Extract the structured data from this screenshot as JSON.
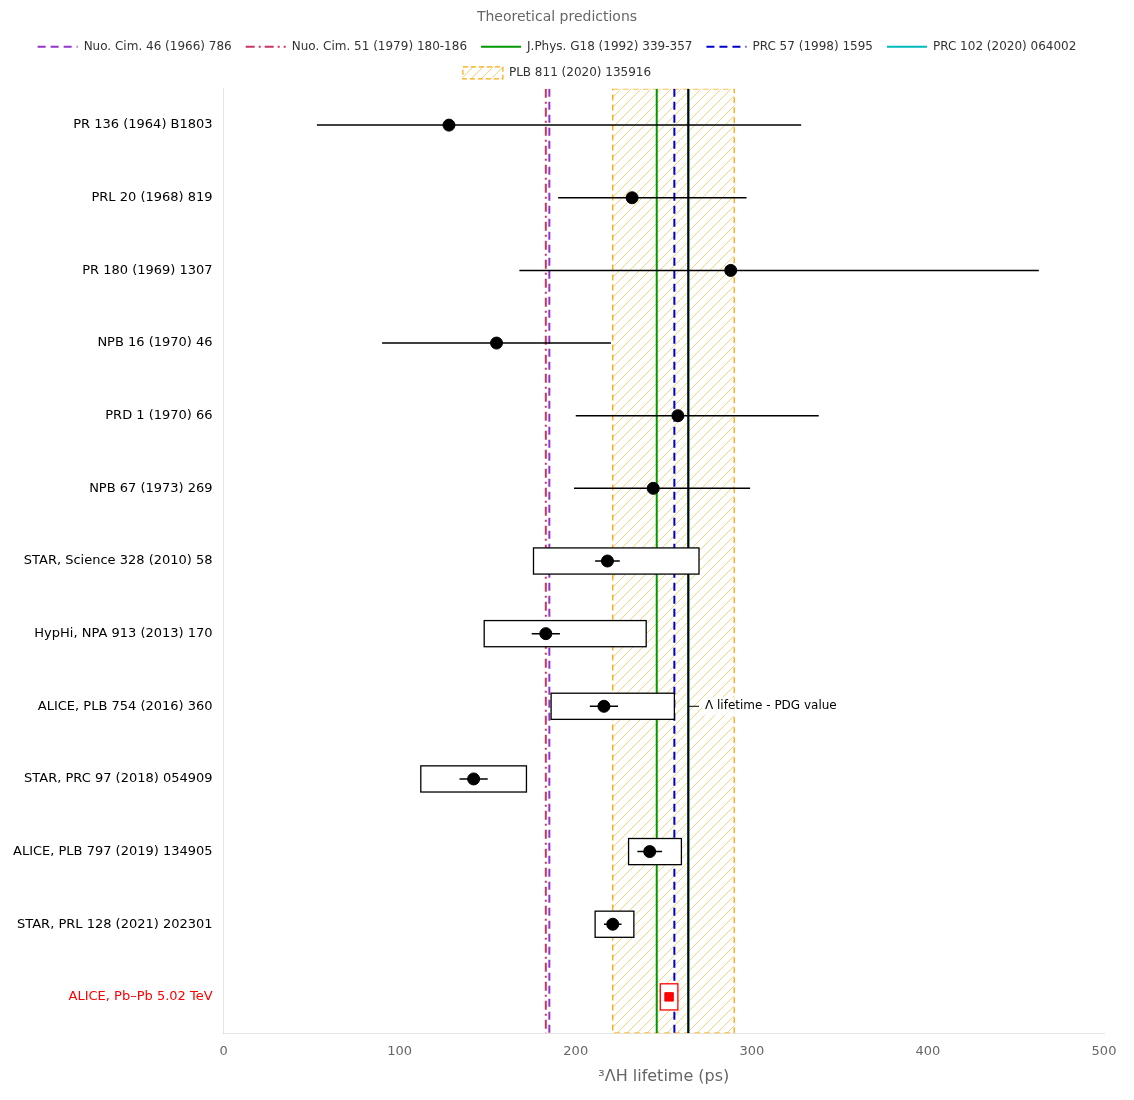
{
  "chart_data": {
    "type": "scatter",
    "orientation": "horizontal",
    "categories": [
      "PR 136 (1964) B1803",
      "PRL 20 (1968) 819",
      "PR 180 (1969) 1307",
      "NPB 16 (1970) 46",
      "PRD 1 (1970) 66",
      "NPB 67 (1973) 269",
      "STAR, Science 328 (2010) 58",
      "HypHi, NPA 913 (2013) 170",
      "ALICE, PLB 754 (2016) 360",
      "STAR, PRC 97 (2018) 054909",
      "ALICE, PLB 797 (2019) 134905",
      "STAR, PRL 128 (2021) 202301",
      "ALICE, Pb–Pb 5.02 TeV"
    ],
    "series": [
      {
        "color": "#000000",
        "marker": "circle",
        "values": [
          128,
          232,
          288,
          155,
          258,
          244,
          218,
          183,
          216,
          142,
          242,
          221,
          null
        ],
        "stat_lo": [
          75,
          42,
          120,
          65,
          58,
          45,
          7,
          8,
          8,
          8,
          7,
          5,
          null
        ],
        "stat_hi": [
          200,
          65,
          175,
          65,
          80,
          55,
          7,
          8,
          8,
          8,
          7,
          5,
          null
        ],
        "syst_lo": [
          null,
          null,
          null,
          null,
          null,
          null,
          42,
          35,
          30,
          30,
          12,
          10,
          null
        ],
        "syst_hi": [
          null,
          null,
          null,
          null,
          null,
          null,
          52,
          57,
          40,
          30,
          18,
          12,
          null
        ]
      },
      {
        "color": "red",
        "marker": "square",
        "values": [
          null,
          null,
          null,
          null,
          null,
          null,
          null,
          null,
          null,
          null,
          null,
          null,
          253
        ],
        "syst_lo": [
          null,
          null,
          null,
          null,
          null,
          null,
          null,
          null,
          null,
          null,
          null,
          null,
          5
        ],
        "syst_hi": [
          null,
          null,
          null,
          null,
          null,
          null,
          null,
          null,
          null,
          null,
          null,
          null,
          5
        ]
      }
    ],
    "reference_lines": [
      {
        "x": 185,
        "color": "#9933CC",
        "line_style": "dashed",
        "name": "Nuo. Cim. 46 (1966) 786"
      },
      {
        "x": 183,
        "color": "#CC3366",
        "line_style": "dashdot",
        "name": "Nuo. Cim. 51 (1979) 180-186"
      },
      {
        "x": 246,
        "color": "#009900",
        "line_style": "solid",
        "name": "J.Phys. G18 (1992) 339-357"
      },
      {
        "x": 256,
        "color": "#0000CC",
        "line_style": "dashed",
        "name": "PRC 57 (1998) 1595"
      },
      {
        "x": 264,
        "color": "#00BBBB",
        "line_style": "solid",
        "name": "PRC 102 (2020) 064002"
      },
      {
        "x": 263.9,
        "color": "#000000",
        "line_style": "solid"
      }
    ],
    "band": {
      "lo": 221,
      "hi": 290,
      "color": "#FFA500",
      "name": "PLB 811 (2020) 135916"
    },
    "legend_title": "Theoretical predictions",
    "legend": "top",
    "annotation": {
      "text": "Λ lifetime - PDG value",
      "x": 270,
      "category": "ALICE, PLB 754 (2016) 360"
    },
    "xlabel": "³ΛH lifetime (ps)",
    "xlim": [
      0,
      500
    ],
    "xticks": [
      0,
      100,
      200,
      300,
      400,
      500
    ],
    "grid": false
  }
}
